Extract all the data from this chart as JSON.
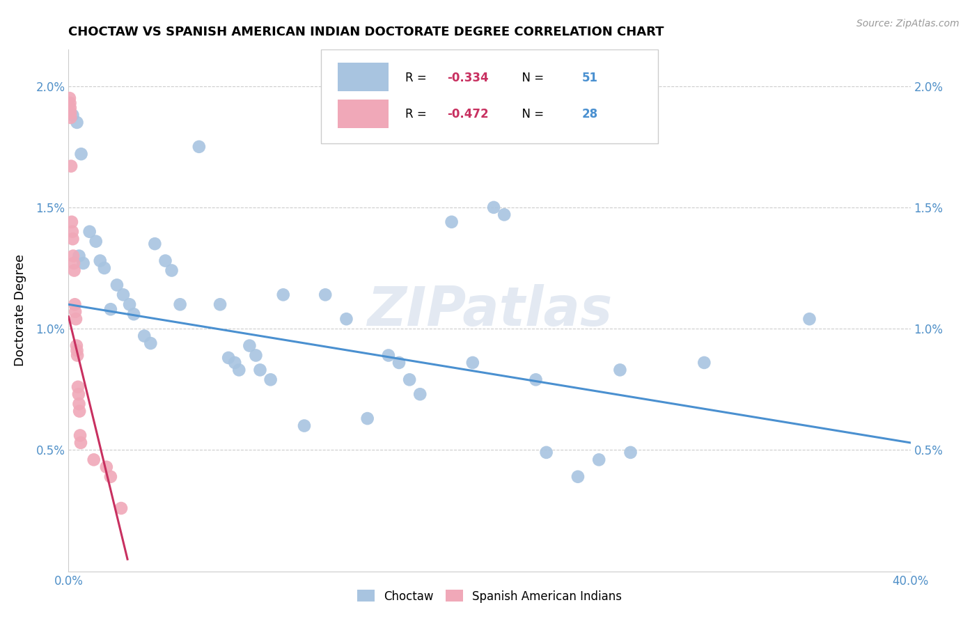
{
  "title": "CHOCTAW VS SPANISH AMERICAN INDIAN DOCTORATE DEGREE CORRELATION CHART",
  "source": "Source: ZipAtlas.com",
  "ylabel": "Doctorate Degree",
  "xlim": [
    0.0,
    40.0
  ],
  "ylim": [
    0.0,
    2.15
  ],
  "yticks": [
    0.5,
    1.0,
    1.5,
    2.0
  ],
  "ytick_labels": [
    "0.5%",
    "1.0%",
    "1.5%",
    "2.0%"
  ],
  "xticks": [
    0.0,
    10.0,
    20.0,
    30.0,
    40.0
  ],
  "xtick_labels": [
    "0.0%",
    "",
    "",
    "",
    "40.0%"
  ],
  "choctaw_color": "#a8c4e0",
  "spanish_color": "#f0a8b8",
  "line_blue": "#4a90d0",
  "line_pink": "#c83060",
  "tick_color": "#5090c8",
  "watermark": "ZIPatlas",
  "choctaw_points": [
    [
      0.2,
      1.88
    ],
    [
      0.4,
      1.85
    ],
    [
      0.6,
      1.72
    ],
    [
      0.5,
      1.3
    ],
    [
      0.7,
      1.27
    ],
    [
      1.0,
      1.4
    ],
    [
      1.3,
      1.36
    ],
    [
      1.5,
      1.28
    ],
    [
      1.7,
      1.25
    ],
    [
      2.0,
      1.08
    ],
    [
      2.3,
      1.18
    ],
    [
      2.6,
      1.14
    ],
    [
      2.9,
      1.1
    ],
    [
      3.1,
      1.06
    ],
    [
      3.6,
      0.97
    ],
    [
      3.9,
      0.94
    ],
    [
      4.1,
      1.35
    ],
    [
      4.6,
      1.28
    ],
    [
      4.9,
      1.24
    ],
    [
      5.3,
      1.1
    ],
    [
      6.2,
      1.75
    ],
    [
      7.2,
      1.1
    ],
    [
      7.6,
      0.88
    ],
    [
      7.9,
      0.86
    ],
    [
      8.1,
      0.83
    ],
    [
      8.6,
      0.93
    ],
    [
      8.9,
      0.89
    ],
    [
      9.1,
      0.83
    ],
    [
      9.6,
      0.79
    ],
    [
      10.2,
      1.14
    ],
    [
      11.2,
      0.6
    ],
    [
      12.2,
      1.14
    ],
    [
      13.2,
      1.04
    ],
    [
      14.2,
      0.63
    ],
    [
      15.2,
      0.89
    ],
    [
      15.7,
      0.86
    ],
    [
      16.2,
      0.79
    ],
    [
      16.7,
      0.73
    ],
    [
      18.2,
      1.44
    ],
    [
      19.2,
      0.86
    ],
    [
      20.2,
      1.5
    ],
    [
      20.7,
      1.47
    ],
    [
      22.2,
      0.79
    ],
    [
      22.7,
      0.49
    ],
    [
      24.2,
      0.39
    ],
    [
      25.2,
      0.46
    ],
    [
      26.2,
      0.83
    ],
    [
      26.7,
      0.49
    ],
    [
      30.2,
      0.86
    ],
    [
      35.2,
      1.04
    ]
  ],
  "spanish_points": [
    [
      0.05,
      1.95
    ],
    [
      0.07,
      1.93
    ],
    [
      0.08,
      1.91
    ],
    [
      0.09,
      1.89
    ],
    [
      0.1,
      1.87
    ],
    [
      0.12,
      1.67
    ],
    [
      0.15,
      1.44
    ],
    [
      0.18,
      1.4
    ],
    [
      0.2,
      1.37
    ],
    [
      0.22,
      1.3
    ],
    [
      0.25,
      1.27
    ],
    [
      0.27,
      1.24
    ],
    [
      0.3,
      1.1
    ],
    [
      0.32,
      1.07
    ],
    [
      0.35,
      1.04
    ],
    [
      0.38,
      0.93
    ],
    [
      0.4,
      0.91
    ],
    [
      0.42,
      0.89
    ],
    [
      0.45,
      0.76
    ],
    [
      0.48,
      0.73
    ],
    [
      0.5,
      0.69
    ],
    [
      0.52,
      0.66
    ],
    [
      0.55,
      0.56
    ],
    [
      0.58,
      0.53
    ],
    [
      1.2,
      0.46
    ],
    [
      1.8,
      0.43
    ],
    [
      2.0,
      0.39
    ],
    [
      2.5,
      0.26
    ]
  ],
  "blue_line_x": [
    0.0,
    40.0
  ],
  "blue_line_y": [
    1.1,
    0.53
  ],
  "pink_line_x": [
    0.0,
    2.8
  ],
  "pink_line_y": [
    1.05,
    0.05
  ]
}
